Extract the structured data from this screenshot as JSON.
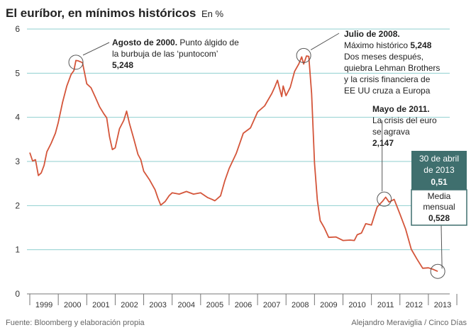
{
  "chart_data": {
    "type": "line",
    "title": "El euríbor, en mínimos históricos",
    "unit": "En %",
    "ylim": [
      0,
      6
    ],
    "yticks": [
      "0",
      "1",
      "2",
      "3",
      "4",
      "5",
      "6"
    ],
    "years": [
      "1999",
      "2000",
      "2001",
      "2002",
      "2003",
      "2004",
      "2005",
      "2006",
      "2007",
      "2008",
      "2009",
      "2010",
      "2011",
      "2012",
      "2013"
    ],
    "grid": true,
    "line_color": "#d4553a",
    "grid_color": "#8fcfcf",
    "series": [
      {
        "x": [
          1999.0,
          1999.1,
          1999.2,
          1999.3,
          1999.4,
          1999.5,
          1999.6,
          1999.75,
          1999.9,
          2000.0,
          2000.15,
          2000.3,
          2000.45,
          2000.55,
          2000.62,
          2000.7,
          2000.85,
          2001.0,
          2001.15,
          2001.3,
          2001.45,
          2001.6,
          2001.7,
          2001.8,
          2001.9,
          2002.0,
          2002.15,
          2002.3,
          2002.4,
          2002.5,
          2002.65,
          2002.8,
          2002.9,
          2003.0,
          2003.2,
          2003.4,
          2003.5,
          2003.6,
          2003.75,
          2003.9,
          2004.0,
          2004.25,
          2004.5,
          2004.75,
          2005.0,
          2005.25,
          2005.4,
          2005.5,
          2005.7,
          2005.85,
          2006.0,
          2006.25,
          2006.5,
          2006.75,
          2007.0,
          2007.25,
          2007.5,
          2007.6,
          2007.7,
          2007.75,
          2007.85,
          2007.9,
          2008.0,
          2008.15,
          2008.3,
          2008.45,
          2008.55,
          2008.62,
          2008.72,
          2008.8,
          2008.9,
          2009.0,
          2009.1,
          2009.2,
          2009.35,
          2009.5,
          2009.75,
          2010.0,
          2010.25,
          2010.4,
          2010.5,
          2010.65,
          2010.8,
          2011.0,
          2011.2,
          2011.4,
          2011.5,
          2011.62,
          2011.8,
          2012.0,
          2012.2,
          2012.4,
          2012.6,
          2012.8,
          2013.0,
          2013.15,
          2013.33
        ],
        "y": [
          3.2,
          3.05,
          3.0,
          2.7,
          2.7,
          2.95,
          3.2,
          3.45,
          3.6,
          3.9,
          4.3,
          4.75,
          4.95,
          5.1,
          5.248,
          5.3,
          5.2,
          4.8,
          4.65,
          4.5,
          4.2,
          4.1,
          3.95,
          3.6,
          3.25,
          3.35,
          3.7,
          3.95,
          4.1,
          3.9,
          3.5,
          3.2,
          3.0,
          2.8,
          2.55,
          2.4,
          2.15,
          2.05,
          2.05,
          2.25,
          2.25,
          2.3,
          2.3,
          2.3,
          2.25,
          2.2,
          2.1,
          2.15,
          2.2,
          2.6,
          2.8,
          3.2,
          3.6,
          3.8,
          4.1,
          4.3,
          4.5,
          4.7,
          4.8,
          4.75,
          4.45,
          4.75,
          4.45,
          4.7,
          5.0,
          5.25,
          5.35,
          5.248,
          5.35,
          5.4,
          4.5,
          3.0,
          2.1,
          1.7,
          1.45,
          1.3,
          1.25,
          1.25,
          1.2,
          1.25,
          1.3,
          1.4,
          1.55,
          1.6,
          1.95,
          2.147,
          2.15,
          2.1,
          2.1,
          1.85,
          1.45,
          1.05,
          0.75,
          0.6,
          0.55,
          0.6,
          0.51
        ]
      }
    ],
    "annotations": [
      {
        "bold": "Agosto de 2000.",
        "lines": [
          "Punto álgido de",
          "la burbuja de las ‘puntocom’"
        ],
        "value": "5,248"
      },
      {
        "bold": "Julio de 2008.",
        "lines": [
          "Máximo histórico",
          "Dos meses después,",
          "quiebra Lehman Brothers",
          "y la crisis financiera de",
          "EE UU cruza a Europa"
        ],
        "value": "5,248"
      },
      {
        "bold": "Mayo de 2011.",
        "lines": [
          "La crisis del euro",
          "se agrava"
        ],
        "value": "2,147"
      }
    ],
    "callout": {
      "date_lines": [
        "30 de abril",
        "de 2013"
      ],
      "value": "0,51",
      "mean_lines": [
        "Media",
        "mensual"
      ],
      "mean_value": "0,528"
    }
  },
  "footer": {
    "source": "Fuente: Bloomberg y elaboración propia",
    "credit": "Alejandro Meraviglia / Cinco Días"
  }
}
